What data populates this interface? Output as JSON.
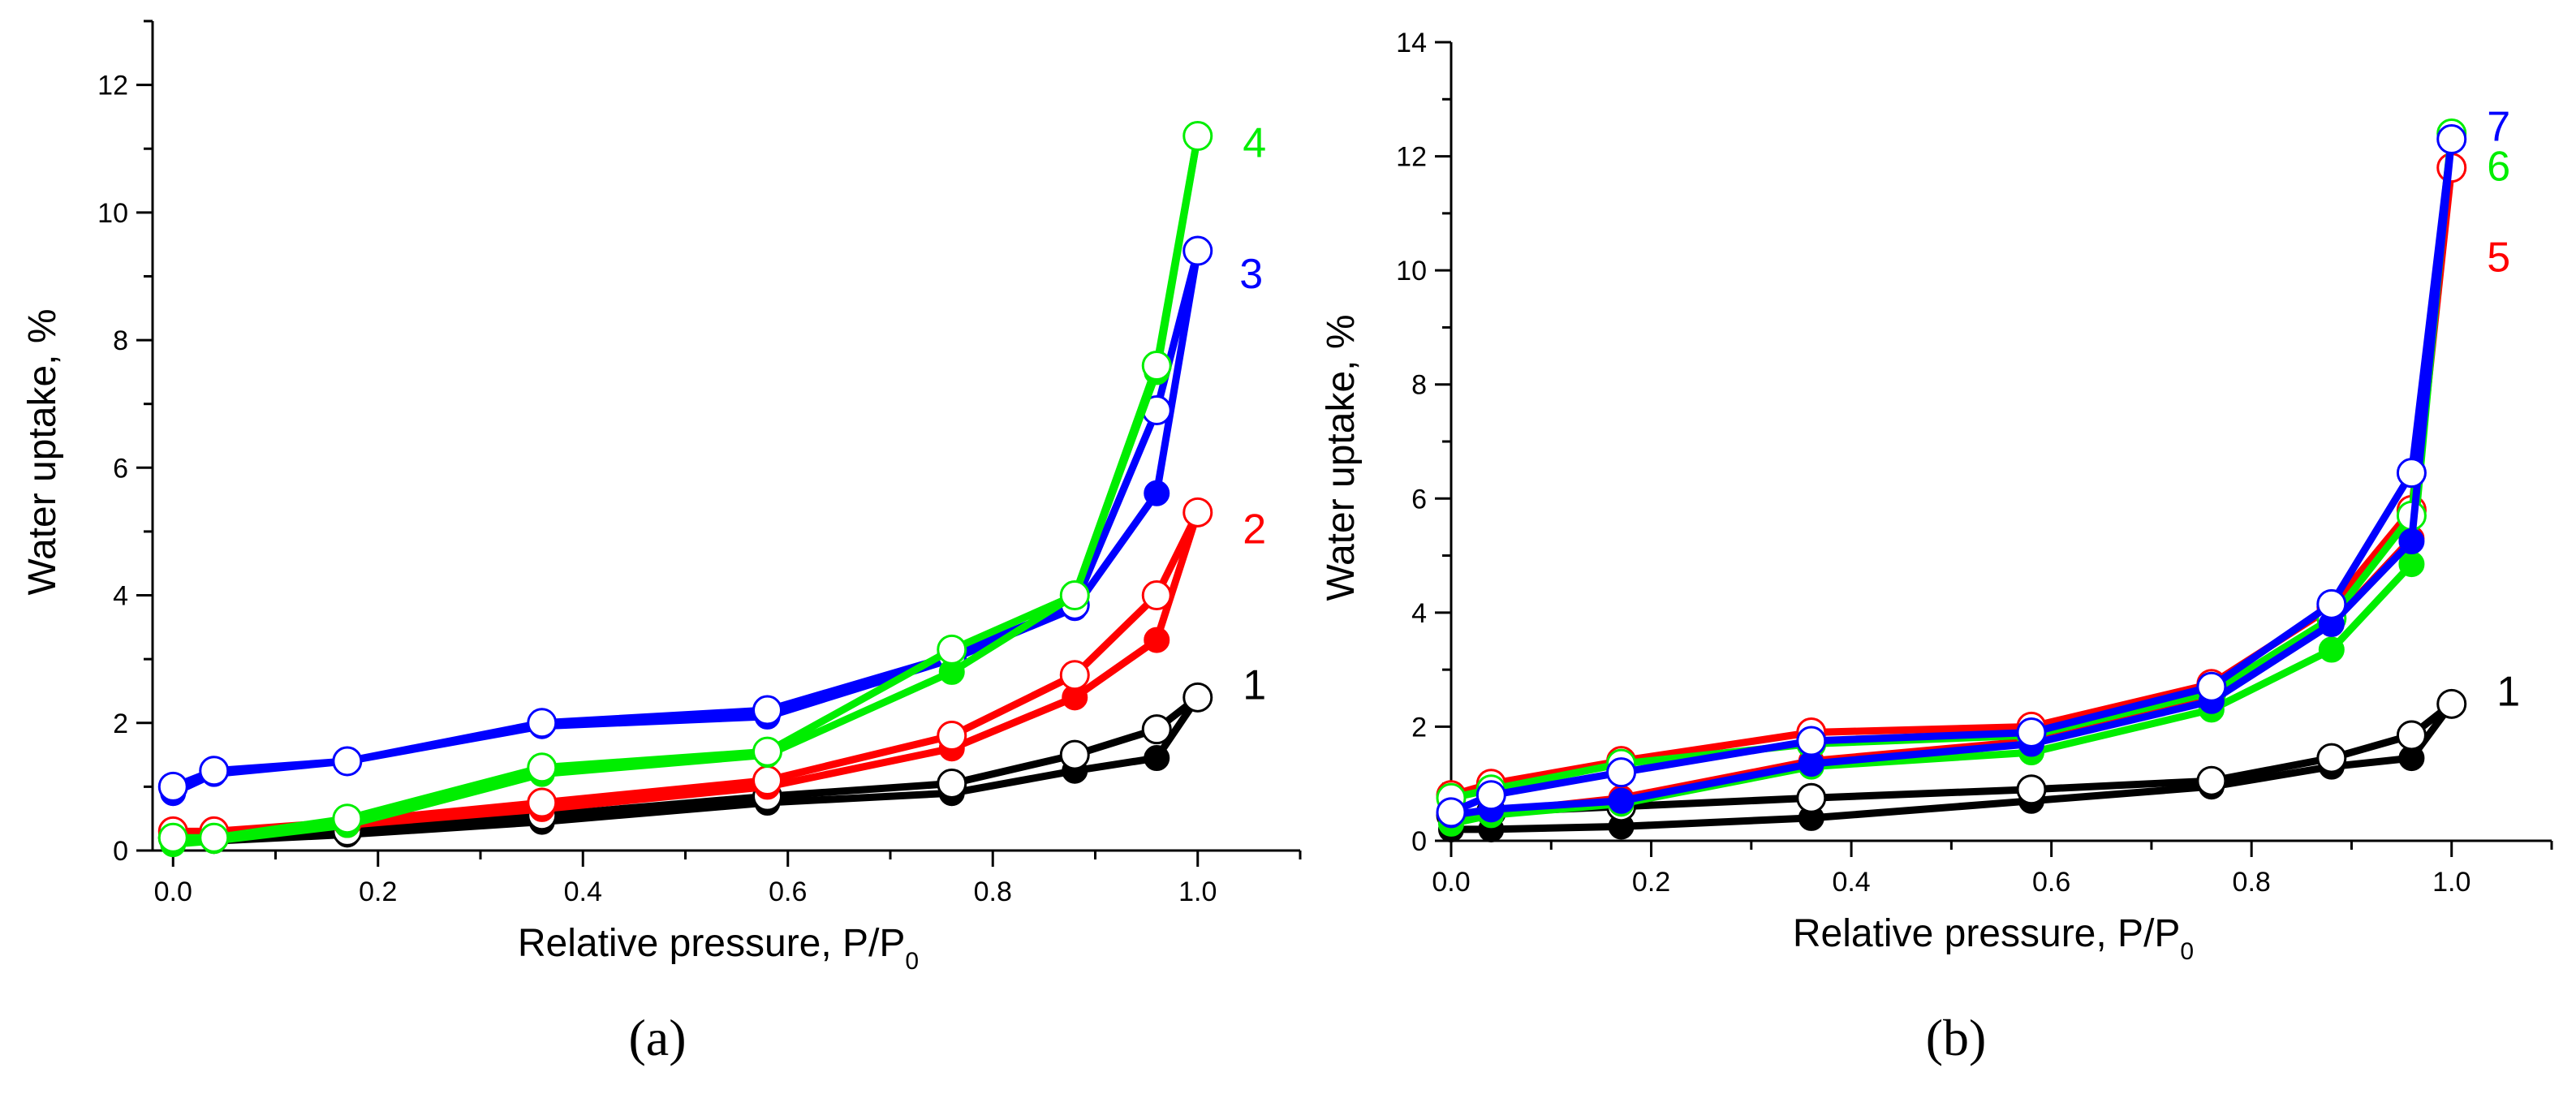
{
  "chart_data": [
    {
      "id": "a",
      "type": "scatter",
      "panel_label": "(a)",
      "xlabel": "Relative pressure, P/P",
      "xlabel_sub": "0",
      "ylabel": "Water uptake, %",
      "xlim": [
        -0.02,
        1.1
      ],
      "ylim": [
        0,
        13
      ],
      "xticks": [
        0.0,
        0.2,
        0.4,
        0.6,
        0.8,
        1.0
      ],
      "xtick_labels": [
        "0.0",
        "0.2",
        "0.4",
        "0.6",
        "0.8",
        "1.0"
      ],
      "yticks": [
        0,
        2,
        4,
        6,
        8,
        10,
        12
      ],
      "ytick_labels": [
        "0",
        "2",
        "4",
        "6",
        "8",
        "10",
        "12"
      ],
      "series": [
        {
          "name": "1",
          "color": "#000000",
          "adsorption": {
            "x": [
              0.0,
              0.04,
              0.17,
              0.36,
              0.58,
              0.76,
              0.88,
              0.96,
              1.0
            ],
            "y": [
              0.15,
              0.15,
              0.25,
              0.45,
              0.75,
              0.9,
              1.25,
              1.45,
              2.4
            ]
          },
          "desorption": {
            "x": [
              1.0,
              0.96,
              0.88,
              0.76,
              0.58,
              0.36,
              0.17,
              0.04,
              0.0
            ],
            "y": [
              2.4,
              1.9,
              1.5,
              1.05,
              0.85,
              0.55,
              0.3,
              0.2,
              0.2
            ]
          }
        },
        {
          "name": "2",
          "color": "#ff0000",
          "adsorption": {
            "x": [
              0.0,
              0.04,
              0.17,
              0.36,
              0.58,
              0.76,
              0.88,
              0.96,
              1.0
            ],
            "y": [
              0.25,
              0.25,
              0.4,
              0.65,
              1.0,
              1.6,
              2.4,
              3.3,
              5.3
            ]
          },
          "desorption": {
            "x": [
              1.0,
              0.96,
              0.88,
              0.76,
              0.58,
              0.36,
              0.17,
              0.04,
              0.0
            ],
            "y": [
              5.3,
              4.0,
              2.75,
              1.8,
              1.1,
              0.75,
              0.45,
              0.3,
              0.3
            ]
          }
        },
        {
          "name": "3",
          "color": "#0000ff",
          "adsorption": {
            "x": [
              0.0,
              0.04,
              0.17,
              0.36,
              0.58,
              0.76,
              0.88,
              0.96,
              1.0
            ],
            "y": [
              0.9,
              1.2,
              1.4,
              1.95,
              2.1,
              3.0,
              3.8,
              5.6,
              9.4
            ]
          },
          "desorption": {
            "x": [
              1.0,
              0.96,
              0.88,
              0.76,
              0.58,
              0.36,
              0.17,
              0.04,
              0.0
            ],
            "y": [
              9.4,
              6.9,
              3.85,
              3.05,
              2.2,
              2.0,
              1.4,
              1.25,
              1.0
            ]
          }
        },
        {
          "name": "4",
          "color": "#00ee00",
          "adsorption": {
            "x": [
              0.0,
              0.04,
              0.17,
              0.36,
              0.58,
              0.76,
              0.88,
              0.96,
              1.0
            ],
            "y": [
              0.1,
              0.15,
              0.4,
              1.2,
              1.5,
              2.8,
              4.0,
              7.5,
              11.2
            ]
          },
          "desorption": {
            "x": [
              1.0,
              0.96,
              0.88,
              0.76,
              0.58,
              0.36,
              0.17,
              0.04,
              0.0
            ],
            "y": [
              11.2,
              7.6,
              4.0,
              3.15,
              1.55,
              1.3,
              0.5,
              0.2,
              0.2
            ]
          }
        }
      ]
    },
    {
      "id": "b",
      "type": "scatter",
      "panel_label": "(b)",
      "xlabel": "Relative pressure, P/P",
      "xlabel_sub": "0",
      "ylabel": "Water uptake, %",
      "xlim": [
        0.0,
        1.1
      ],
      "ylim": [
        0,
        14
      ],
      "xticks": [
        0.0,
        0.2,
        0.4,
        0.6,
        0.8,
        1.0
      ],
      "xtick_labels": [
        "0.0",
        "0.2",
        "0.4",
        "0.6",
        "0.8",
        "1.0"
      ],
      "yticks": [
        0,
        2,
        4,
        6,
        8,
        10,
        12,
        14
      ],
      "ytick_labels": [
        "0",
        "2",
        "4",
        "6",
        "8",
        "10",
        "12",
        "14"
      ],
      "series": [
        {
          "name": "1",
          "color": "#000000",
          "adsorption": {
            "x": [
              0.0,
              0.04,
              0.17,
              0.36,
              0.58,
              0.76,
              0.88,
              0.96,
              1.0
            ],
            "y": [
              0.2,
              0.2,
              0.25,
              0.4,
              0.7,
              0.95,
              1.3,
              1.45,
              2.4
            ]
          },
          "desorption": {
            "x": [
              1.0,
              0.96,
              0.88,
              0.76,
              0.58,
              0.36,
              0.17,
              0.04,
              0.0
            ],
            "y": [
              2.4,
              1.85,
              1.45,
              1.05,
              0.9,
              0.75,
              0.6,
              0.5,
              0.45
            ]
          }
        },
        {
          "name": "5",
          "color": "#ff0000",
          "adsorption": {
            "x": [
              0.0,
              0.04,
              0.17,
              0.36,
              0.58,
              0.76,
              0.88,
              0.96,
              1.0
            ],
            "y": [
              0.4,
              0.5,
              0.75,
              1.4,
              1.75,
              2.5,
              3.8,
              5.3,
              11.8
            ]
          },
          "desorption": {
            "x": [
              1.0,
              0.96,
              0.88,
              0.76,
              0.58,
              0.36,
              0.17,
              0.04,
              0.0
            ],
            "y": [
              11.8,
              5.8,
              4.1,
              2.75,
              2.0,
              1.9,
              1.4,
              1.0,
              0.8
            ]
          }
        },
        {
          "name": "6",
          "color": "#00ee00",
          "adsorption": {
            "x": [
              0.0,
              0.04,
              0.17,
              0.36,
              0.58,
              0.76,
              0.88,
              0.96,
              1.0
            ],
            "y": [
              0.3,
              0.45,
              0.65,
              1.3,
              1.55,
              2.3,
              3.35,
              4.85,
              12.4
            ]
          },
          "desorption": {
            "x": [
              1.0,
              0.96,
              0.88,
              0.76,
              0.58,
              0.36,
              0.17,
              0.04,
              0.0
            ],
            "y": [
              12.4,
              5.7,
              3.9,
              2.6,
              1.85,
              1.7,
              1.35,
              0.9,
              0.75
            ]
          }
        },
        {
          "name": "7",
          "color": "#0000ff",
          "adsorption": {
            "x": [
              0.0,
              0.04,
              0.17,
              0.36,
              0.58,
              0.76,
              0.88,
              0.96,
              1.0
            ],
            "y": [
              0.45,
              0.55,
              0.7,
              1.35,
              1.7,
              2.45,
              3.8,
              5.25,
              12.3
            ]
          },
          "desorption": {
            "x": [
              1.0,
              0.96,
              0.88,
              0.76,
              0.58,
              0.36,
              0.17,
              0.04,
              0.0
            ],
            "y": [
              12.3,
              6.45,
              4.15,
              2.7,
              1.9,
              1.75,
              1.2,
              0.8,
              0.5
            ]
          }
        }
      ]
    }
  ]
}
